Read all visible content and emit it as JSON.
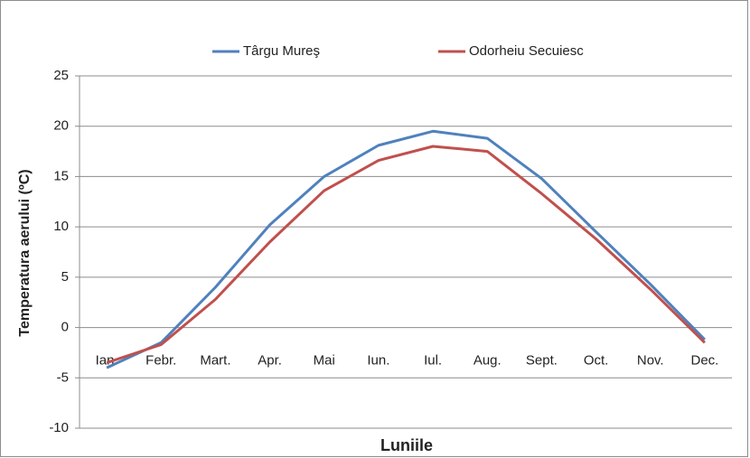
{
  "chart_data": {
    "type": "line",
    "x_label": "Luniile",
    "y_label": "Temperatura aerului (ºC)",
    "categories": [
      "Ian.",
      "Febr.",
      "Mart.",
      "Apr.",
      "Mai",
      "Iun.",
      "Iul.",
      "Aug.",
      "Sept.",
      "Oct.",
      "Nov.",
      "Dec."
    ],
    "series": [
      {
        "name": "Târgu Mureş",
        "color": "#4f81bd",
        "values": [
          -4.0,
          -1.5,
          4.0,
          10.2,
          15.0,
          18.1,
          19.5,
          18.8,
          14.8,
          9.5,
          4.3,
          -1.2
        ]
      },
      {
        "name": "Odorheiu Secuiesc",
        "color": "#c0504d",
        "values": [
          -3.5,
          -1.7,
          2.8,
          8.5,
          13.6,
          16.6,
          18.0,
          17.5,
          13.3,
          8.8,
          3.8,
          -1.5
        ]
      }
    ],
    "ylim": [
      -10,
      25
    ],
    "yticks": [
      -10,
      -5,
      0,
      5,
      10,
      15,
      20,
      25
    ],
    "grid": true,
    "legend": "top"
  }
}
